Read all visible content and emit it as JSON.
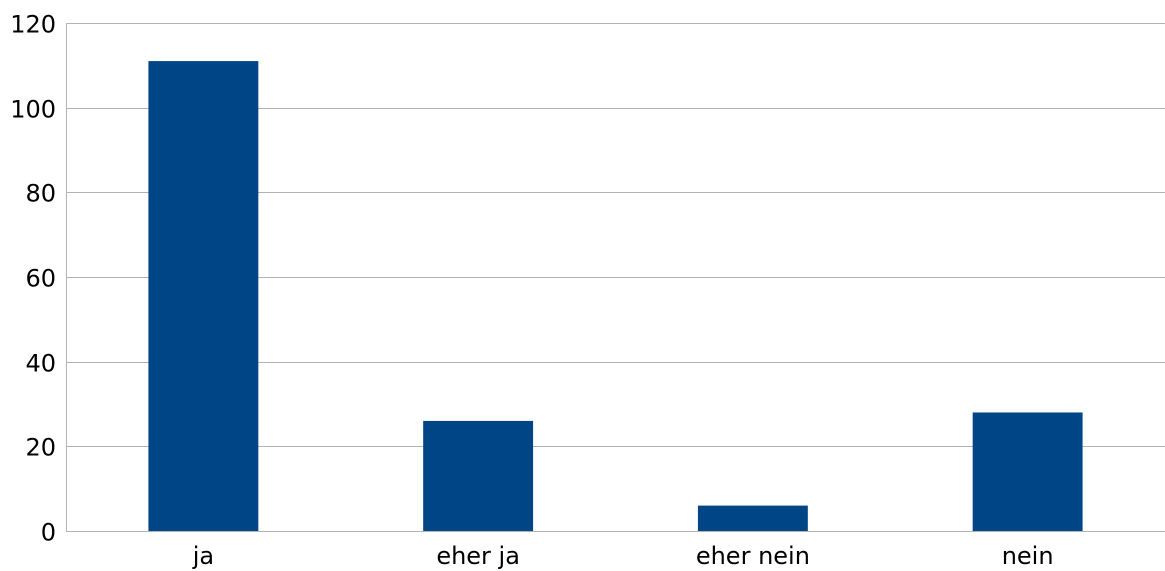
{
  "chart_data": {
    "type": "bar",
    "title": "",
    "xlabel": "",
    "ylabel": "",
    "categories": [
      "ja",
      "eher ja",
      "eher nein",
      "nein"
    ],
    "values": [
      111,
      26,
      6,
      28
    ],
    "ylim": [
      0,
      120
    ],
    "yticks": [
      0,
      20,
      40,
      60,
      80,
      100,
      120
    ],
    "ytick_labels": [
      "0",
      "20",
      "40",
      "60",
      "80",
      "100",
      "120"
    ],
    "grid": true,
    "legend": "none",
    "bar_color": "#004586",
    "grid_color": "#b3b3b3"
  }
}
